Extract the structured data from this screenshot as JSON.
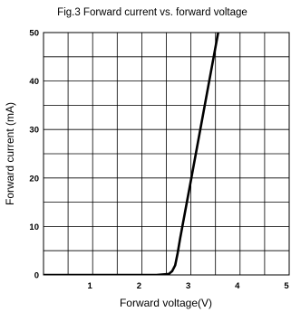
{
  "chart_data": {
    "type": "line",
    "title": "Fig.3 Forward current vs. forward voltage",
    "xlabel": "Forward voltage(V)",
    "ylabel": "Forward current (mA)",
    "xlim": [
      0,
      5
    ],
    "ylim": [
      0,
      50
    ],
    "x_ticks": [
      1,
      2,
      3,
      4,
      5
    ],
    "x_tick_labels": [
      "1",
      "2",
      "3",
      "4",
      "5"
    ],
    "y_ticks": [
      0,
      10,
      20,
      30,
      40,
      50
    ],
    "y_tick_labels": [
      "0",
      "10",
      "20",
      "30",
      "40",
      "50"
    ],
    "x_minor_step": 0.5,
    "y_minor_step": 5,
    "grid": true,
    "legend": "none",
    "series": [
      {
        "x": [
          0,
          2.3,
          2.55,
          2.62,
          2.68,
          2.73,
          2.78,
          3.0,
          3.2,
          3.4,
          3.6,
          3.65
        ],
        "y": [
          0,
          0,
          0.2,
          0.8,
          2,
          4.5,
          7.5,
          19.5,
          30.5,
          41.5,
          52.5,
          55
        ],
        "color": "#000000"
      }
    ]
  }
}
